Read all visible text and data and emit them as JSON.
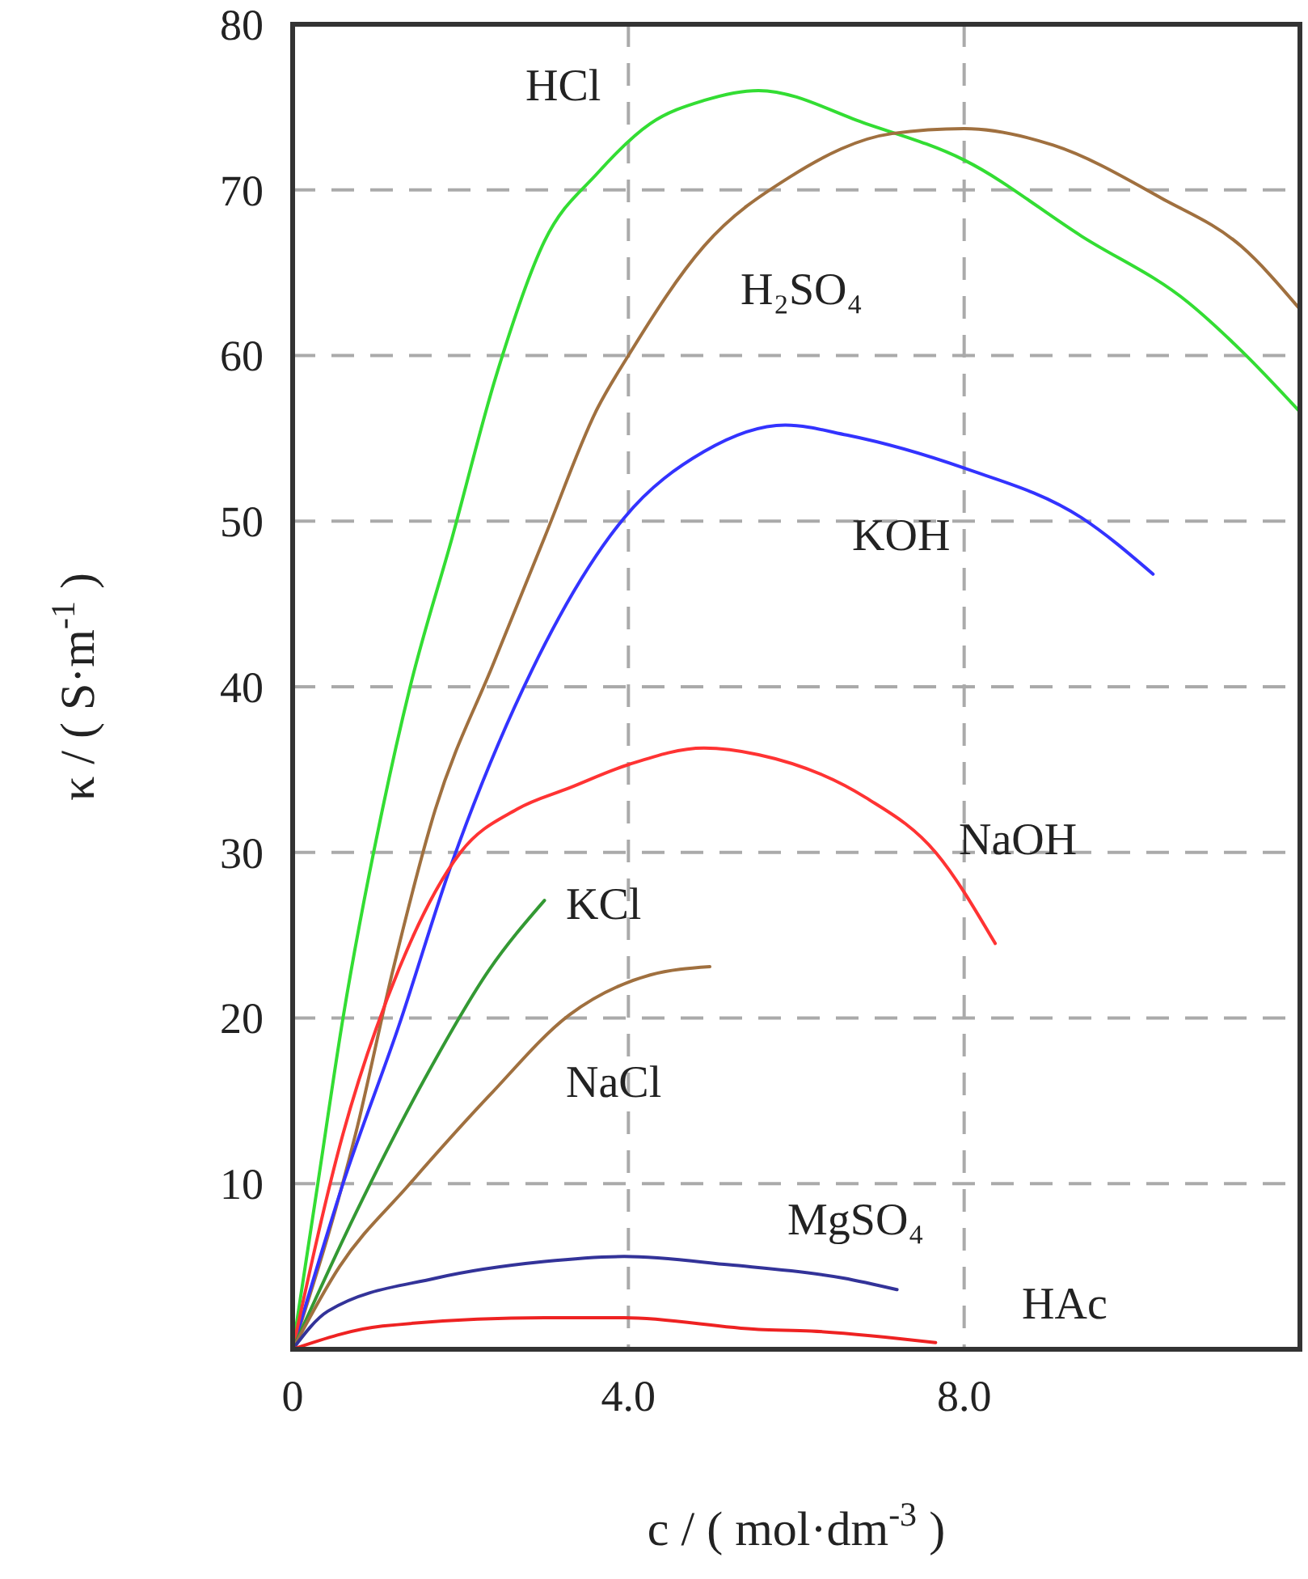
{
  "chart_data": {
    "type": "line",
    "xlabel": "c / ( mol·dm$^{-3}$ )",
    "ylabel": "κ / ( S·m$^{-1}$ )",
    "xlim": [
      0,
      12
    ],
    "ylim": [
      0,
      80
    ],
    "xticks": [
      {
        "value": 0,
        "label": "0"
      },
      {
        "value": 4,
        "label": "4.0"
      },
      {
        "value": 8,
        "label": "8.0"
      }
    ],
    "yticks": [
      10,
      20,
      30,
      40,
      50,
      60,
      70,
      80
    ],
    "grid": true,
    "legend": false,
    "marker": "none",
    "line_style": "solid",
    "tick_labels": "xy",
    "series": [
      {
        "name": "HCl",
        "color": "#33dd33",
        "x": [
          0,
          0.3,
          0.6,
          1.07,
          1.4,
          1.9,
          2.42,
          3.0,
          3.63,
          4.26,
          4.9,
          5.55,
          6.83,
          8.0,
          9.4,
          10.67,
          11.3,
          12
        ],
        "values": [
          0,
          10,
          20,
          32.6,
          40,
          49,
          58.7,
          66.9,
          71,
          74,
          75.4,
          76,
          74,
          71.8,
          67.2,
          63.2,
          60.3,
          56.6
        ]
      },
      {
        "name": "H₂SO₄",
        "color": "#a0703f",
        "x": [
          0,
          0.75,
          1.2,
          1.7,
          2.4,
          3.0,
          3.63,
          4.0,
          4.9,
          5.93,
          7.14,
          8.0,
          9.06,
          10.35,
          11.3,
          12
        ],
        "values": [
          0,
          13,
          23,
          32.6,
          41.5,
          49,
          56.8,
          60,
          66.6,
          70.8,
          73.4,
          73.7,
          72.7,
          69.5,
          66.6,
          62.8
        ]
      },
      {
        "name": "KOH",
        "color": "#3333ff",
        "x": [
          0,
          0.6,
          1.27,
          1.9,
          2.85,
          3.95,
          4.9,
          5.87,
          6.6,
          8.0,
          9.4,
          10.25
        ],
        "values": [
          0,
          10,
          19.6,
          29.4,
          41,
          50.2,
          54.2,
          55.8,
          55.2,
          53.2,
          50.2,
          46.8
        ]
      },
      {
        "name": "NaOH",
        "color": "#ff3333",
        "x": [
          0,
          0.6,
          1.27,
          2.0,
          2.67,
          3.3,
          4.0,
          4.9,
          5.55,
          6.83,
          7.66,
          8.37
        ],
        "values": [
          0,
          13,
          23,
          30,
          32.6,
          33.9,
          35.3,
          36.3,
          35.9,
          33.3,
          30,
          24.5
        ]
      },
      {
        "name": "KCl",
        "color": "#339933",
        "x": [
          0,
          0.75,
          1.57,
          2.34,
          3.0
        ],
        "values": [
          0,
          8.2,
          16.3,
          22.9,
          27.1
        ]
      },
      {
        "name": "NaCl",
        "color": "#a0703f",
        "x": [
          0,
          0.56,
          1.38,
          2.34,
          3.3,
          4.26,
          4.97
        ],
        "values": [
          0,
          5,
          9.9,
          15.3,
          20.2,
          22.6,
          23.1
        ]
      },
      {
        "name": "MgSO₄",
        "color": "#333399",
        "x": [
          0,
          0.42,
          1.71,
          3.0,
          3.95,
          5.2,
          6.56,
          7.2
        ],
        "values": [
          0,
          2.3,
          4.3,
          5.3,
          5.6,
          5.1,
          4.3,
          3.6
        ]
      },
      {
        "name": "HAc",
        "color": "#ee2222",
        "x": [
          0,
          1.07,
          3.0,
          3.95,
          5.55,
          6.18,
          7.66
        ],
        "values": [
          0,
          1.4,
          1.9,
          1.9,
          1.2,
          1.1,
          0.4
        ]
      }
    ]
  }
}
